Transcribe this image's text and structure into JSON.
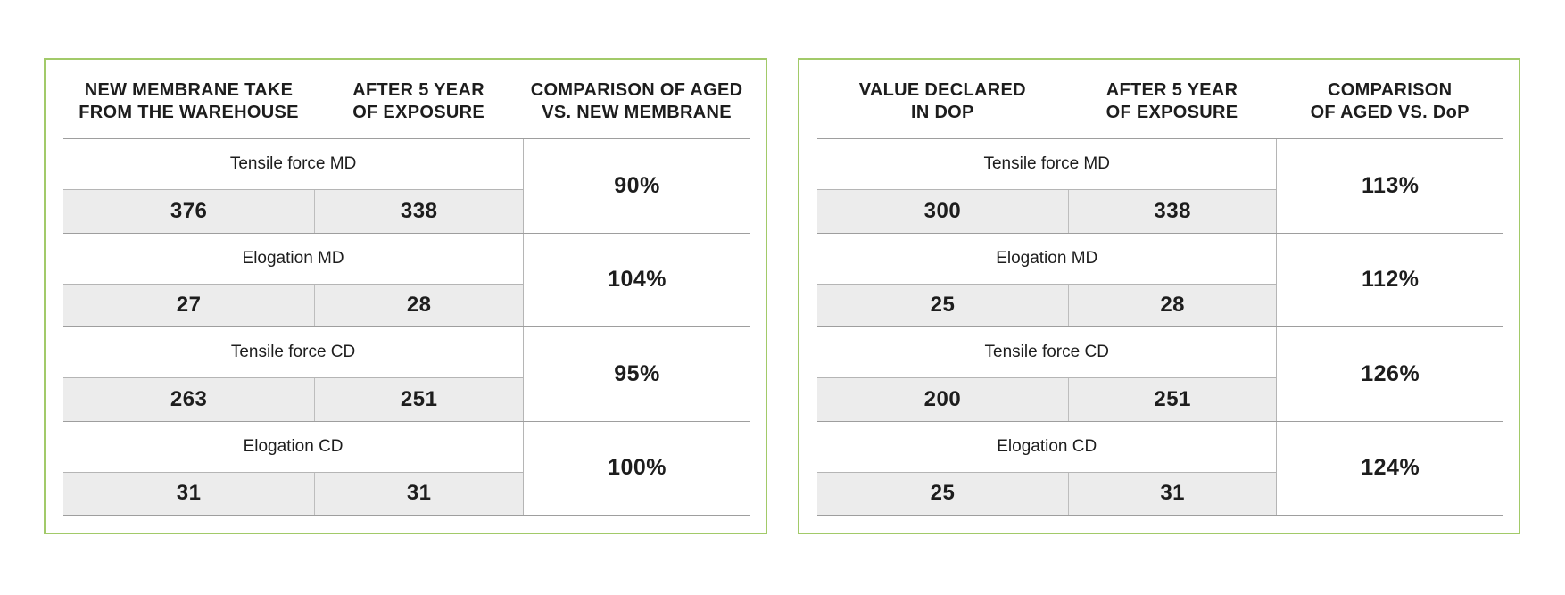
{
  "colors": {
    "card_border_green": "#a2ca69",
    "row_separator_gray": "#9e9e9e",
    "cell_border_gray": "#b5b5b5",
    "value_cell_background": "#ececec",
    "text": "#1d1d1d"
  },
  "chart_data": [
    {
      "type": "table",
      "title": "Aged vs. new membrane comparison",
      "columns": [
        "NEW MEMBRANE TAKE FROM THE WAREHOUSE",
        "AFTER 5 YEAR OF EXPOSURE",
        "COMPARISON OF AGED VS. NEW MEMBRANE"
      ],
      "rows": [
        {
          "metric": "Tensile force MD",
          "new_membrane": 376,
          "after_5_year": 338,
          "comparison": "90%"
        },
        {
          "metric": "Elogation MD",
          "new_membrane": 27,
          "after_5_year": 28,
          "comparison": "104%"
        },
        {
          "metric": "Tensile force CD",
          "new_membrane": 263,
          "after_5_year": 251,
          "comparison": "95%"
        },
        {
          "metric": "Elogation CD",
          "new_membrane": 31,
          "after_5_year": 31,
          "comparison": "100%"
        }
      ]
    },
    {
      "type": "table",
      "title": "Aged vs. DoP comparison",
      "columns": [
        "VALUE DECLARED IN DOP",
        "AFTER 5 YEAR OF EXPOSURE",
        "COMPARISON OF AGED VS. DoP"
      ],
      "rows": [
        {
          "metric": "Tensile force MD",
          "value_declared": 300,
          "after_5_year": 338,
          "comparison": "113%"
        },
        {
          "metric": "Elogation MD",
          "value_declared": 25,
          "after_5_year": 28,
          "comparison": "112%"
        },
        {
          "metric": "Tensile force CD",
          "value_declared": 200,
          "after_5_year": 251,
          "comparison": "126%"
        },
        {
          "metric": "Elogation CD",
          "value_declared": 25,
          "after_5_year": 31,
          "comparison": "124%"
        }
      ]
    }
  ],
  "tables": [
    {
      "headers": [
        {
          "line1": "NEW MEMBRANE TAKE",
          "line2": "FROM THE WAREHOUSE"
        },
        {
          "line1": "AFTER 5 YEAR",
          "line2": "OF EXPOSURE"
        },
        {
          "line1": "COMPARISON OF AGED",
          "line2": "VS. NEW MEMBRANE"
        }
      ],
      "rows": [
        {
          "label": "Tensile force MD",
          "values": [
            "376",
            "338"
          ],
          "comparison": "90%"
        },
        {
          "label": "Elogation MD",
          "values": [
            "27",
            "28"
          ],
          "comparison": "104%"
        },
        {
          "label": "Tensile force CD",
          "values": [
            "263",
            "251"
          ],
          "comparison": "95%"
        },
        {
          "label": "Elogation CD",
          "values": [
            "31",
            "31"
          ],
          "comparison": "100%"
        }
      ]
    },
    {
      "headers": [
        {
          "line1": "VALUE DECLARED",
          "line2": "IN DOP"
        },
        {
          "line1": "AFTER 5 YEAR",
          "line2": "OF EXPOSURE"
        },
        {
          "line1": "COMPARISON",
          "line2": "OF AGED VS. DoP"
        }
      ],
      "rows": [
        {
          "label": "Tensile force MD",
          "values": [
            "300",
            "338"
          ],
          "comparison": "113%"
        },
        {
          "label": "Elogation MD",
          "values": [
            "25",
            "28"
          ],
          "comparison": "112%"
        },
        {
          "label": "Tensile force CD",
          "values": [
            "200",
            "251"
          ],
          "comparison": "126%"
        },
        {
          "label": "Elogation CD",
          "values": [
            "25",
            "31"
          ],
          "comparison": "124%"
        }
      ]
    }
  ]
}
